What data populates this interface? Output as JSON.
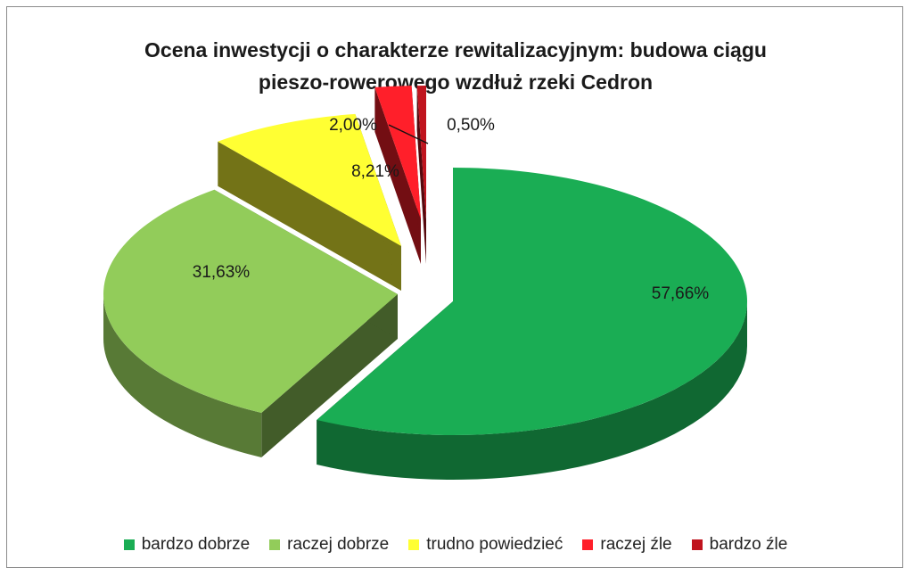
{
  "chart_data": {
    "type": "pie",
    "title_lines": [
      "Ocena inwestycji o charakterze rewitalizacyjnym: budowa ciągu",
      "pieszo-rowerowego wzdłuż rzeki Cedron"
    ],
    "categories": [
      "bardzo dobrze",
      "raczej dobrze",
      "trudno powiedzieć",
      "raczej źle",
      "bardzo źle"
    ],
    "values": [
      57.66,
      31.63,
      8.21,
      2.0,
      0.5
    ],
    "value_labels": [
      "57,66%",
      "31,63%",
      "8,21%",
      "2,00%",
      "0,50%"
    ],
    "colors": [
      "#1aad54",
      "#92cc5a",
      "#ffff33",
      "#ff1f2a",
      "#c0141e"
    ],
    "legend_position": "bottom",
    "exploded": true,
    "style": "3d"
  }
}
